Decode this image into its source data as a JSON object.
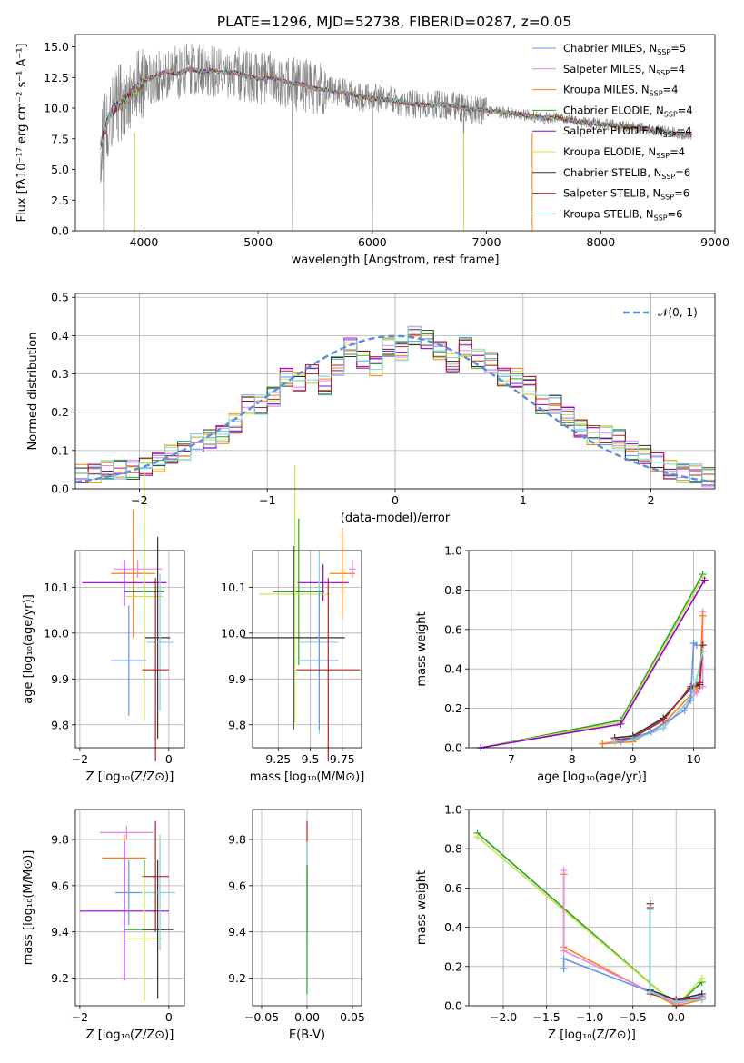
{
  "chart_data": [
    {
      "id": "spectrum",
      "type": "line",
      "title": "PLATE=1296, MJD=52738, FIBERID=0287, z=0.05",
      "xlabel": "wavelength [Angstrom, rest frame]",
      "ylabel": "Flux [fλ10⁻¹⁷ erg cm⁻² s⁻¹ A⁻¹]",
      "xlim": [
        3400,
        9000
      ],
      "ylim": [
        0,
        16
      ],
      "xticks": [
        4000,
        5000,
        6000,
        7000,
        8000,
        9000
      ],
      "yticks": [
        0.0,
        2.5,
        5.0,
        7.5,
        10.0,
        12.5,
        15.0
      ],
      "legend_position": "upper-right",
      "observed": {
        "x": [
          3620,
          3700,
          3800,
          3900,
          4000,
          4100,
          4200,
          4300,
          4400,
          4500,
          4600,
          4700,
          4800,
          4900,
          5000,
          5100,
          5200,
          5300,
          5400,
          5500,
          5600,
          5700,
          5800,
          5900,
          6000,
          6100,
          6200,
          6300,
          6400,
          6500,
          6600,
          6700,
          6800,
          6900,
          7000,
          7100,
          7200,
          7300,
          7400,
          7500,
          7600,
          7700,
          7800,
          7900,
          8000,
          8100,
          8200,
          8300,
          8400,
          8500,
          8600,
          8700,
          8800
        ],
        "y": [
          7.0,
          9.5,
          10.5,
          11.2,
          12.3,
          12.6,
          13.0,
          12.8,
          13.2,
          13.0,
          13.1,
          12.9,
          12.9,
          12.6,
          12.4,
          12.5,
          12.3,
          12.0,
          11.9,
          11.6,
          11.5,
          11.3,
          11.2,
          10.9,
          10.8,
          10.7,
          10.6,
          10.4,
          10.3,
          10.2,
          10.3,
          10.2,
          10.0,
          9.9,
          9.8,
          9.7,
          9.6,
          9.5,
          9.3,
          9.2,
          9.2,
          9.1,
          8.9,
          8.8,
          8.7,
          8.6,
          8.5,
          8.4,
          8.3,
          8.2,
          8.0,
          7.9,
          7.8
        ]
      },
      "series": [
        {
          "name": "Chabrier MILES, N",
          "sub": "SSP",
          "count": "=5",
          "color": "#6495ed"
        },
        {
          "name": "Salpeter MILES, N",
          "sub": "SSP",
          "count": "=4",
          "color": "#ee82ee"
        },
        {
          "name": "Kroupa MILES, N",
          "sub": "SSP",
          "count": "=4",
          "color": "#ff7f0e"
        },
        {
          "name": "Chabrier ELODIE, N",
          "sub": "SSP",
          "count": "=4",
          "color": "#2ca02c"
        },
        {
          "name": "Salpeter ELODIE, N",
          "sub": "SSP",
          "count": "=4",
          "color": "#9400d3"
        },
        {
          "name": "Kroupa ELODIE, N",
          "sub": "SSP",
          "count": "=4",
          "color": "#c7e54a"
        },
        {
          "name": "Chabrier STELIB, N",
          "sub": "SSP",
          "count": "=6",
          "color": "#333333"
        },
        {
          "name": "Salpeter STELIB, N",
          "sub": "SSP",
          "count": "=6",
          "color": "#b22222"
        },
        {
          "name": "Kroupa STELIB, N",
          "sub": "SSP",
          "count": "=6",
          "color": "#7fd4e0"
        }
      ]
    },
    {
      "id": "residuals",
      "type": "step",
      "xlabel": "(data-model)/error",
      "ylabel": "Normed distribution",
      "xlim": [
        -2.5,
        2.5
      ],
      "ylim": [
        0,
        0.51
      ],
      "xticks": [
        -2,
        -1,
        0,
        1,
        2
      ],
      "yticks": [
        0.0,
        0.1,
        0.2,
        0.3,
        0.4,
        0.5
      ],
      "legend_label": "𝒩(0, 1)",
      "bin_edges": [
        -2.5,
        -2.4,
        -2.3,
        -2.2,
        -2.1,
        -2.0,
        -1.9,
        -1.8,
        -1.7,
        -1.6,
        -1.5,
        -1.4,
        -1.3,
        -1.2,
        -1.1,
        -1.0,
        -0.9,
        -0.8,
        -0.7,
        -0.6,
        -0.5,
        -0.4,
        -0.3,
        -0.2,
        -0.1,
        0.0,
        0.1,
        0.2,
        0.3,
        0.4,
        0.5,
        0.6,
        0.7,
        0.8,
        0.9,
        1.0,
        1.1,
        1.2,
        1.3,
        1.4,
        1.5,
        1.6,
        1.7,
        1.8,
        1.9,
        2.0,
        2.1,
        2.2,
        2.3,
        2.4,
        2.5
      ],
      "hist_base": [
        0.04,
        0.04,
        0.05,
        0.05,
        0.05,
        0.06,
        0.07,
        0.09,
        0.1,
        0.12,
        0.13,
        0.14,
        0.17,
        0.22,
        0.22,
        0.24,
        0.29,
        0.28,
        0.3,
        0.27,
        0.32,
        0.37,
        0.34,
        0.32,
        0.37,
        0.36,
        0.4,
        0.39,
        0.36,
        0.33,
        0.37,
        0.34,
        0.33,
        0.29,
        0.29,
        0.27,
        0.22,
        0.22,
        0.19,
        0.16,
        0.14,
        0.14,
        0.13,
        0.1,
        0.09,
        0.07,
        0.05,
        0.04,
        0.04,
        0.03
      ],
      "series_colors": [
        "#6495ed",
        "#ee82ee",
        "#ff7f0e",
        "#2ca02c",
        "#9400d3",
        "#c7e54a",
        "#333333",
        "#b22222",
        "#7fd4e0"
      ]
    },
    {
      "id": "age_vs_Z",
      "type": "errorbar",
      "xlabel": "Z [log₁₀(Z/Z⊙)]",
      "ylabel": "age  [log₁₀(age/yr)]",
      "xlim": [
        -2.1,
        0.35
      ],
      "ylim": [
        9.75,
        10.18
      ],
      "xticks": [
        -2,
        0
      ],
      "yticks": [
        9.8,
        9.9,
        10.0,
        10.1
      ],
      "points": [
        {
          "color": "#ee82ee",
          "x": -0.7,
          "xerr": 0.55,
          "y": 10.14,
          "yerr": 0.02
        },
        {
          "color": "#ff7f0e",
          "x": -0.8,
          "xerr": 0.5,
          "y": 10.13,
          "yerr": 0.14
        },
        {
          "color": "#9400d3",
          "x": -1.0,
          "xerr": 0.95,
          "y": 10.11,
          "yerr": 0.05
        },
        {
          "color": "#2ca02c",
          "x": -0.55,
          "xerr": 0.45,
          "y": 10.09,
          "yerr": 0.15
        },
        {
          "color": "#c7e54a",
          "x": -0.55,
          "xerr": 0.42,
          "y": 10.08,
          "yerr": 0.27
        },
        {
          "color": "#333333",
          "x": -0.25,
          "xerr": 0.28,
          "y": 9.99,
          "yerr": 0.22
        },
        {
          "color": "#7fd4e0",
          "x": -0.2,
          "xerr": 0.3,
          "y": 9.98,
          "yerr": 0.15
        },
        {
          "color": "#6495ed",
          "x": -0.9,
          "xerr": 0.4,
          "y": 9.94,
          "yerr": 0.12
        },
        {
          "color": "#b22222",
          "x": -0.3,
          "xerr": 0.3,
          "y": 9.92,
          "yerr": 0.2
        }
      ]
    },
    {
      "id": "age_vs_mass",
      "type": "errorbar",
      "xlabel": "mass [log₁₀(M/M⊙)]",
      "ylabel": "",
      "xlim": [
        9.05,
        9.9
      ],
      "ylim": [
        9.75,
        10.18
      ],
      "xticks": [
        9.25,
        9.5,
        9.75
      ],
      "yticks": [
        9.8,
        9.9,
        10.0,
        10.1
      ],
      "points": [
        {
          "color": "#ee82ee",
          "x": 9.83,
          "xerr": 0.03,
          "y": 10.14,
          "yerr": 0.02
        },
        {
          "color": "#ff7f0e",
          "x": 9.75,
          "xerr": 0.1,
          "y": 10.13,
          "yerr": 0.1
        },
        {
          "color": "#9400d3",
          "x": 9.6,
          "xerr": 0.2,
          "y": 10.11,
          "yerr": 0.04
        },
        {
          "color": "#2ca02c",
          "x": 9.41,
          "xerr": 0.2,
          "y": 10.09,
          "yerr": 0.16
        },
        {
          "color": "#c7e54a",
          "x": 9.38,
          "xerr": 0.28,
          "y": 10.085,
          "yerr": 0.28
        },
        {
          "color": "#333333",
          "x": 9.37,
          "xerr": 0.4,
          "y": 9.99,
          "yerr": 0.2
        },
        {
          "color": "#7fd4e0",
          "x": 9.57,
          "xerr": 0.15,
          "y": 9.98,
          "yerr": 0.2
        },
        {
          "color": "#6495ed",
          "x": 9.57,
          "xerr": 0.15,
          "y": 9.94,
          "yerr": 0.15
        },
        {
          "color": "#b22222",
          "x": 9.64,
          "xerr": 0.25,
          "y": 9.92,
          "yerr": 0.2
        }
      ]
    },
    {
      "id": "massweight_vs_age",
      "type": "line",
      "xlabel": "age  [log₁₀(age/yr)]",
      "ylabel": "mass weight",
      "xlim": [
        6.3,
        10.35
      ],
      "ylim": [
        0,
        1
      ],
      "xticks": [
        7,
        8,
        9,
        10
      ],
      "yticks": [
        0.0,
        0.2,
        0.4,
        0.6,
        0.8,
        1.0
      ],
      "series": [
        {
          "color": "#2ca02c",
          "x": [
            6.5,
            8.8,
            10.15
          ],
          "y": [
            0.0,
            0.14,
            0.88
          ]
        },
        {
          "color": "#c7e54a",
          "x": [
            6.5,
            8.8,
            10.15
          ],
          "y": [
            0.0,
            0.13,
            0.86
          ]
        },
        {
          "color": "#9400d3",
          "x": [
            6.5,
            8.8,
            10.18
          ],
          "y": [
            0.0,
            0.12,
            0.85
          ]
        },
        {
          "color": "#ee82ee",
          "x": [
            8.5,
            9.0,
            9.5,
            10.05,
            10.15,
            10.15
          ],
          "y": [
            0.02,
            0.05,
            0.1,
            0.28,
            0.31,
            0.69
          ]
        },
        {
          "color": "#ff7f0e",
          "x": [
            8.5,
            9.0,
            9.5,
            10.05,
            10.1,
            10.15
          ],
          "y": [
            0.02,
            0.03,
            0.12,
            0.3,
            0.32,
            0.67
          ]
        },
        {
          "color": "#333333",
          "x": [
            8.7,
            9.0,
            9.5,
            9.95,
            10.1,
            10.15
          ],
          "y": [
            0.05,
            0.06,
            0.15,
            0.3,
            0.32,
            0.52
          ]
        },
        {
          "color": "#b22222",
          "x": [
            8.7,
            9.0,
            9.5,
            9.95,
            10.1,
            10.15
          ],
          "y": [
            0.04,
            0.05,
            0.14,
            0.31,
            0.33,
            0.52
          ]
        },
        {
          "color": "#7fd4e0",
          "x": [
            8.7,
            9.0,
            9.5,
            9.95,
            10.05,
            10.15
          ],
          "y": [
            0.03,
            0.04,
            0.1,
            0.25,
            0.35,
            0.49
          ]
        },
        {
          "color": "#6495ed",
          "x": [
            8.8,
            9.3,
            9.85,
            9.95,
            10.0,
            10.05
          ],
          "y": [
            0.03,
            0.08,
            0.19,
            0.24,
            0.53,
            0.52
          ]
        }
      ]
    },
    {
      "id": "mass_vs_Z",
      "type": "errorbar",
      "xlabel": "Z [log₁₀(Z/Z⊙)]",
      "ylabel": "mass [log₁₀(M/M⊙)]",
      "xlim": [
        -2.1,
        0.35
      ],
      "ylim": [
        9.08,
        9.93
      ],
      "xticks": [
        -2,
        0
      ],
      "yticks": [
        9.2,
        9.4,
        9.6,
        9.8
      ],
      "points": [
        {
          "color": "#ee82ee",
          "x": -0.95,
          "xerr": 0.6,
          "y": 9.83,
          "yerr": 0.03
        },
        {
          "color": "#ff7f0e",
          "x": -1.0,
          "xerr": 0.5,
          "y": 9.72,
          "yerr": 0.1
        },
        {
          "color": "#9400d3",
          "x": -1.0,
          "xerr": 1.0,
          "y": 9.49,
          "yerr": 0.3
        },
        {
          "color": "#2ca02c",
          "x": -0.55,
          "xerr": 0.45,
          "y": 9.41,
          "yerr": 0.3
        },
        {
          "color": "#c7e54a",
          "x": -0.55,
          "xerr": 0.4,
          "y": 9.37,
          "yerr": 0.27
        },
        {
          "color": "#333333",
          "x": -0.25,
          "xerr": 0.35,
          "y": 9.41,
          "yerr": 0.3
        },
        {
          "color": "#7fd4e0",
          "x": -0.2,
          "xerr": 0.35,
          "y": 9.57,
          "yerr": 0.25
        },
        {
          "color": "#6495ed",
          "x": -0.9,
          "xerr": 0.3,
          "y": 9.57,
          "yerr": 0.14
        },
        {
          "color": "#b22222",
          "x": -0.3,
          "xerr": 0.3,
          "y": 9.64,
          "yerr": 0.24
        }
      ]
    },
    {
      "id": "mass_vs_ebv",
      "type": "errorbar",
      "xlabel": "E(B-V)",
      "ylabel": "",
      "xlim": [
        -0.06,
        0.06
      ],
      "ylim": [
        9.08,
        9.93
      ],
      "xticks": [
        -0.05,
        0.0,
        0.05
      ],
      "xtick_labels": [
        "−0.05",
        "0.00",
        "0.05"
      ],
      "yticks": [
        9.2,
        9.4,
        9.6,
        9.8
      ],
      "points": [
        {
          "color": "#b22222",
          "x": 0.0,
          "y": 9.64,
          "yerr": 0.24
        },
        {
          "color": "#7fd4e0",
          "x": 0.0,
          "y": 9.57,
          "yerr": 0.22
        },
        {
          "color": "#2ca02c",
          "x": 0.0,
          "y": 9.41,
          "yerr": 0.28
        }
      ]
    },
    {
      "id": "massweight_vs_Z",
      "type": "line",
      "xlabel": "Z [log₁₀(Z/Z⊙)]",
      "ylabel": "mass weight",
      "xlim": [
        -2.4,
        0.45
      ],
      "ylim": [
        0,
        1
      ],
      "xticks": [
        -2.0,
        -1.5,
        -1.0,
        -0.5,
        0.0
      ],
      "xtick_labels": [
        "−2.0",
        "−1.5",
        "−1.0",
        "−0.5",
        "0.0"
      ],
      "yticks": [
        0.0,
        0.2,
        0.4,
        0.6,
        0.8,
        1.0
      ],
      "series": [
        {
          "color": "#2ca02c",
          "x": [
            -2.3,
            0.0,
            0.3
          ],
          "y": [
            0.88,
            0.0,
            0.12
          ]
        },
        {
          "color": "#c7e54a",
          "x": [
            -2.3,
            0.0,
            0.3
          ],
          "y": [
            0.86,
            0.0,
            0.14
          ]
        },
        {
          "color": "#ff7f0e",
          "x": [
            -1.3,
            -1.3,
            0.0,
            0.3
          ],
          "y": [
            0.67,
            0.3,
            0.0,
            0.03
          ]
        },
        {
          "color": "#ee82ee",
          "x": [
            -1.3,
            -1.3,
            0.0,
            0.3
          ],
          "y": [
            0.69,
            0.28,
            0.01,
            0.04
          ]
        },
        {
          "color": "#6495ed",
          "x": [
            -1.3,
            -1.3,
            0.0,
            0.3
          ],
          "y": [
            0.19,
            0.24,
            0.02,
            0.05
          ]
        },
        {
          "color": "#333333",
          "x": [
            -0.3,
            -0.3,
            0.0,
            0.3
          ],
          "y": [
            0.52,
            0.08,
            0.03,
            0.06
          ]
        },
        {
          "color": "#b22222",
          "x": [
            -0.3,
            -0.3,
            0.0,
            0.3
          ],
          "y": [
            0.5,
            0.06,
            0.03,
            0.04
          ]
        },
        {
          "color": "#7fd4e0",
          "x": [
            -0.3,
            -0.3,
            0.0,
            0.3
          ],
          "y": [
            0.49,
            0.07,
            0.02,
            0.03
          ]
        }
      ]
    }
  ]
}
